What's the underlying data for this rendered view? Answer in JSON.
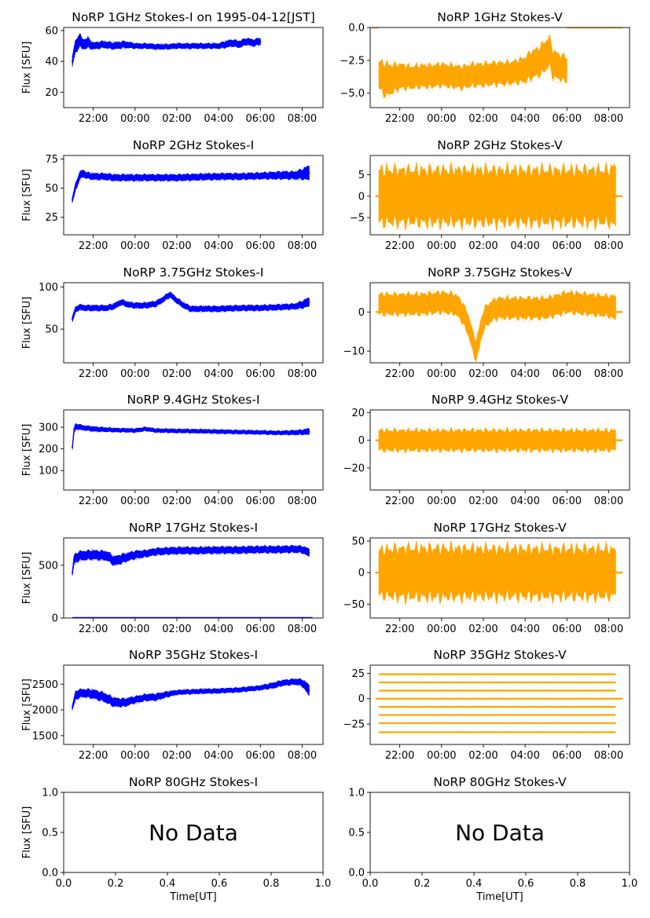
{
  "colors": {
    "stokes_i": "#0000ff",
    "stokes_v": "#ffa500",
    "axes": "#000000",
    "background": "#ffffff"
  },
  "common": {
    "ylabel": "Flux [SFU]",
    "time_ticks": [
      "22:00",
      "00:00",
      "02:00",
      "04:00",
      "06:00",
      "08:00"
    ],
    "no_data_text": "No Data",
    "empty_xlabel": "Time[UT]"
  },
  "chart_data": [
    {
      "type": "scatter",
      "row": 0,
      "col": 0,
      "title": "NoRP 1GHz Stokes-I on 1995-04-12[JST]",
      "ylabel": "Flux [SFU]",
      "ylim": [
        10,
        62
      ],
      "yticks": [
        20,
        40,
        60
      ],
      "ytick_labels": [
        "20",
        "40",
        "60"
      ],
      "x_ticks": [
        "22:00",
        "00:00",
        "02:00",
        "04:00",
        "06:00",
        "08:00"
      ],
      "series_color": "stokes_i",
      "x_range": [
        "20:35",
        "09:00"
      ],
      "data_extent": [
        "21:00",
        "06:00"
      ],
      "edge_marks": [],
      "x": [
        "21:00",
        "21:05",
        "21:10",
        "21:20",
        "21:30",
        "21:45",
        "22:00",
        "22:30",
        "23:00",
        "23:30",
        "00:00",
        "00:30",
        "01:00",
        "01:30",
        "02:00",
        "02:30",
        "03:00",
        "03:30",
        "04:00",
        "04:20",
        "04:40",
        "05:00",
        "05:20",
        "05:40",
        "06:00"
      ],
      "y": [
        40,
        46,
        50,
        54,
        51,
        52,
        50,
        51,
        50,
        51,
        50,
        50,
        49.5,
        49.5,
        50,
        50,
        50,
        50,
        50,
        51,
        52,
        51,
        53,
        52,
        53
      ],
      "band": [
        3,
        3,
        4,
        4,
        3,
        3,
        2,
        2,
        2,
        2,
        1.5,
        1.5,
        1.5,
        1.5,
        1.5,
        1.5,
        1.5,
        1.5,
        1.5,
        2,
        2,
        2,
        2,
        2,
        2
      ]
    },
    {
      "type": "scatter",
      "row": 0,
      "col": 1,
      "title": "NoRP 1GHz Stokes-V",
      "ylim": [
        -6.1,
        0
      ],
      "yticks": [
        -5.0,
        -2.5,
        0.0
      ],
      "ytick_labels": [
        "−5.0",
        "−2.5",
        "0.0"
      ],
      "x_ticks": [
        "22:00",
        "00:00",
        "02:00",
        "04:00",
        "06:00",
        "08:00"
      ],
      "series_color": "stokes_v",
      "x_range": [
        "20:35",
        "09:00"
      ],
      "data_extent": [
        "21:00",
        "06:00"
      ],
      "edge_marks": [
        [
          "20:40",
          "21:00",
          0
        ],
        [
          "06:00",
          "08:40",
          0
        ]
      ],
      "x": [
        "21:00",
        "21:20",
        "21:40",
        "22:00",
        "22:30",
        "23:00",
        "23:30",
        "00:00",
        "00:30",
        "01:00",
        "01:30",
        "02:00",
        "02:30",
        "03:00",
        "03:30",
        "04:00",
        "04:20",
        "04:40",
        "05:00",
        "05:10",
        "05:20",
        "05:40",
        "06:00"
      ],
      "y": [
        -3.6,
        -4.0,
        -3.9,
        -3.7,
        -3.8,
        -3.7,
        -3.7,
        -3.6,
        -3.7,
        -3.8,
        -3.6,
        -3.6,
        -3.5,
        -3.5,
        -3.4,
        -3.2,
        -2.8,
        -2.6,
        -2.1,
        -1.8,
        -2.8,
        -3.0,
        -3.2
      ],
      "band": [
        1.0,
        1.2,
        1.0,
        0.9,
        0.8,
        0.8,
        0.8,
        0.8,
        0.8,
        0.8,
        0.8,
        0.8,
        0.8,
        0.8,
        0.8,
        0.9,
        1.0,
        1.0,
        1.1,
        1.0,
        1.0,
        0.9,
        0.9
      ]
    },
    {
      "type": "scatter",
      "row": 1,
      "col": 0,
      "title": "NoRP 2GHz Stokes-I",
      "ylabel": "Flux [SFU]",
      "ylim": [
        10,
        78
      ],
      "yticks": [
        25,
        50,
        75
      ],
      "ytick_labels": [
        "25",
        "50",
        "75"
      ],
      "x_ticks": [
        "22:00",
        "00:00",
        "02:00",
        "04:00",
        "06:00",
        "08:00"
      ],
      "series_color": "stokes_i",
      "x_range": [
        "20:35",
        "09:00"
      ],
      "data_extent": [
        "21:00",
        "08:20"
      ],
      "edge_marks": [],
      "x": [
        "21:00",
        "21:10",
        "21:20",
        "21:30",
        "21:40",
        "22:00",
        "22:30",
        "23:00",
        "00:00",
        "01:00",
        "02:00",
        "03:00",
        "04:00",
        "05:00",
        "06:00",
        "07:00",
        "07:40",
        "08:00",
        "08:20"
      ],
      "y": [
        40,
        52,
        60,
        63,
        61,
        60,
        60,
        59,
        59,
        59,
        59,
        59.5,
        60,
        60,
        60.5,
        61,
        61,
        62,
        63
      ],
      "band": [
        2,
        3,
        3,
        3,
        2.5,
        2.5,
        2.5,
        2.5,
        2.5,
        2.5,
        2.5,
        2.5,
        2.5,
        2.5,
        2.5,
        3,
        3,
        4,
        6
      ]
    },
    {
      "type": "scatter",
      "row": 1,
      "col": 1,
      "title": "NoRP 2GHz Stokes-V",
      "ylim": [
        -9,
        9.5
      ],
      "yticks": [
        -5,
        0,
        5
      ],
      "ytick_labels": [
        "−5",
        "0",
        "5"
      ],
      "x_ticks": [
        "22:00",
        "00:00",
        "02:00",
        "04:00",
        "06:00",
        "08:00"
      ],
      "series_color": "stokes_v",
      "x_range": [
        "20:35",
        "09:00"
      ],
      "data_extent": [
        "21:00",
        "08:20"
      ],
      "edge_marks": [
        [
          "20:50",
          "21:00",
          0
        ],
        [
          "08:20",
          "08:40",
          0
        ]
      ],
      "x": [
        "21:00",
        "22:00",
        "00:00",
        "02:00",
        "04:00",
        "06:00",
        "08:00",
        "08:20"
      ],
      "y": [
        0,
        0,
        0,
        0,
        0,
        0,
        0,
        0
      ],
      "band": [
        6,
        6,
        6,
        6,
        6,
        6,
        6,
        7
      ]
    },
    {
      "type": "scatter",
      "row": 2,
      "col": 0,
      "title": "NoRP 3.75GHz Stokes-I",
      "ylabel": "Flux [SFU]",
      "ylim": [
        10,
        105
      ],
      "yticks": [
        50,
        100
      ],
      "ytick_labels": [
        "50",
        "100"
      ],
      "x_ticks": [
        "22:00",
        "00:00",
        "02:00",
        "04:00",
        "06:00",
        "08:00"
      ],
      "series_color": "stokes_i",
      "x_range": [
        "20:35",
        "09:00"
      ],
      "data_extent": [
        "21:00",
        "08:20"
      ],
      "edge_marks": [],
      "x": [
        "21:00",
        "21:10",
        "21:20",
        "21:40",
        "22:00",
        "22:40",
        "23:00",
        "23:20",
        "23:40",
        "00:00",
        "00:30",
        "01:00",
        "01:20",
        "01:40",
        "02:00",
        "02:20",
        "02:40",
        "03:00",
        "04:00",
        "05:00",
        "06:00",
        "07:00",
        "07:40",
        "08:00",
        "08:20"
      ],
      "y": [
        62,
        74,
        76,
        75,
        75,
        75,
        77,
        82,
        79,
        78,
        78,
        80,
        85,
        91,
        84,
        78,
        74,
        74,
        74,
        75,
        75,
        76,
        77,
        79,
        82
      ],
      "band": [
        3,
        3,
        3,
        3,
        3,
        3,
        3,
        3,
        3,
        3,
        3,
        3,
        3,
        3,
        3,
        3,
        3,
        3,
        3,
        3,
        3,
        3,
        3,
        4,
        5
      ]
    },
    {
      "type": "scatter",
      "row": 2,
      "col": 1,
      "title": "NoRP 3.75GHz Stokes-V",
      "ylim": [
        -13,
        7.5
      ],
      "yticks": [
        -10,
        0
      ],
      "ytick_labels": [
        "−10",
        "0"
      ],
      "x_ticks": [
        "22:00",
        "00:00",
        "02:00",
        "04:00",
        "06:00",
        "08:00"
      ],
      "series_color": "stokes_v",
      "x_range": [
        "20:35",
        "09:00"
      ],
      "data_extent": [
        "21:00",
        "08:20"
      ],
      "edge_marks": [
        [
          "20:50",
          "21:00",
          0
        ],
        [
          "08:20",
          "08:40",
          0
        ]
      ],
      "x": [
        "21:00",
        "22:00",
        "23:00",
        "00:00",
        "00:40",
        "01:00",
        "01:20",
        "01:30",
        "01:40",
        "01:50",
        "02:00",
        "02:20",
        "02:40",
        "03:00",
        "04:00",
        "05:00",
        "06:00",
        "07:00",
        "08:00",
        "08:20"
      ],
      "y": [
        2,
        2,
        2,
        2.5,
        2,
        0,
        -4,
        -8,
        -10,
        -6,
        -2,
        0,
        1,
        1,
        1,
        1,
        2.5,
        2,
        1.5,
        1
      ],
      "band": [
        2.5,
        2.5,
        2.5,
        2.5,
        2.5,
        2.5,
        2.5,
        2.5,
        2.5,
        2.5,
        2.5,
        2.5,
        2.5,
        2.5,
        2.5,
        2.5,
        2.5,
        2.5,
        2.5,
        3
      ]
    },
    {
      "type": "scatter",
      "row": 3,
      "col": 0,
      "title": "NoRP 9.4GHz Stokes-I",
      "ylabel": "Flux [SFU]",
      "ylim": [
        10,
        380
      ],
      "yticks": [
        100,
        200,
        300
      ],
      "ytick_labels": [
        "100",
        "200",
        "300"
      ],
      "x_ticks": [
        "22:00",
        "00:00",
        "02:00",
        "04:00",
        "06:00",
        "08:00"
      ],
      "series_color": "stokes_i",
      "x_range": [
        "20:35",
        "09:00"
      ],
      "data_extent": [
        "21:00",
        "08:20"
      ],
      "edge_marks": [],
      "x": [
        "21:00",
        "21:05",
        "21:10",
        "21:30",
        "22:00",
        "23:00",
        "00:00",
        "00:30",
        "01:00",
        "02:00",
        "03:00",
        "04:00",
        "05:00",
        "06:00",
        "07:00",
        "08:00",
        "08:20"
      ],
      "y": [
        210,
        290,
        305,
        298,
        292,
        287,
        285,
        292,
        285,
        283,
        282,
        280,
        278,
        276,
        274,
        277,
        280
      ],
      "band": [
        10,
        12,
        12,
        10,
        10,
        8,
        8,
        8,
        8,
        8,
        8,
        8,
        8,
        8,
        8,
        10,
        14
      ]
    },
    {
      "type": "scatter",
      "row": 3,
      "col": 1,
      "title": "NoRP 9.4GHz Stokes-V",
      "ylim": [
        -36,
        22
      ],
      "yticks": [
        -20,
        0,
        20
      ],
      "ytick_labels": [
        "−20",
        "0",
        "20"
      ],
      "x_ticks": [
        "22:00",
        "00:00",
        "02:00",
        "04:00",
        "06:00",
        "08:00"
      ],
      "series_color": "stokes_v",
      "x_range": [
        "20:35",
        "09:00"
      ],
      "data_extent": [
        "21:00",
        "08:20"
      ],
      "edge_marks": [
        [
          "20:50",
          "21:00",
          0
        ],
        [
          "08:20",
          "08:40",
          0
        ]
      ],
      "x": [
        "21:00",
        "22:00",
        "00:00",
        "02:00",
        "04:00",
        "06:00",
        "08:00",
        "08:20"
      ],
      "y": [
        0,
        0,
        0,
        0,
        0,
        0,
        0,
        0
      ],
      "band": [
        7,
        7,
        7,
        7,
        7,
        7,
        7,
        7
      ]
    },
    {
      "type": "scatter",
      "row": 4,
      "col": 0,
      "title": "NoRP 17GHz Stokes-I",
      "ylabel": "Flux [SFU]",
      "ylim": [
        0,
        760
      ],
      "yticks": [
        0,
        500
      ],
      "ytick_labels": [
        "0",
        "500"
      ],
      "x_ticks": [
        "22:00",
        "00:00",
        "02:00",
        "04:00",
        "06:00",
        "08:00"
      ],
      "series_color": "stokes_i",
      "x_range": [
        "20:35",
        "09:00"
      ],
      "data_extent": [
        "21:00",
        "08:20"
      ],
      "edge_marks": [
        [
          "21:00",
          "08:30",
          0
        ]
      ],
      "x": [
        "21:00",
        "21:05",
        "21:20",
        "22:00",
        "22:40",
        "23:00",
        "23:20",
        "23:40",
        "00:00",
        "00:30",
        "01:00",
        "02:00",
        "03:00",
        "04:00",
        "05:00",
        "06:00",
        "07:00",
        "07:40",
        "08:00",
        "08:20"
      ],
      "y": [
        430,
        560,
        590,
        600,
        590,
        540,
        560,
        580,
        600,
        610,
        630,
        640,
        640,
        645,
        645,
        650,
        650,
        655,
        650,
        620
      ],
      "band": [
        20,
        40,
        40,
        40,
        40,
        40,
        40,
        35,
        35,
        30,
        30,
        30,
        30,
        30,
        30,
        30,
        30,
        30,
        30,
        35
      ]
    },
    {
      "type": "scatter",
      "row": 4,
      "col": 1,
      "title": "NoRP 17GHz Stokes-V",
      "ylim": [
        -72,
        55
      ],
      "yticks": [
        -50,
        0,
        50
      ],
      "ytick_labels": [
        "−50",
        "0",
        "50"
      ],
      "x_ticks": [
        "22:00",
        "00:00",
        "02:00",
        "04:00",
        "06:00",
        "08:00"
      ],
      "series_color": "stokes_v",
      "x_range": [
        "20:35",
        "09:00"
      ],
      "data_extent": [
        "21:00",
        "08:20"
      ],
      "edge_marks": [
        [
          "20:50",
          "21:00",
          0
        ],
        [
          "08:20",
          "08:40",
          0
        ]
      ],
      "x": [
        "21:00",
        "22:00",
        "00:00",
        "02:00",
        "04:00",
        "06:00",
        "08:00",
        "08:20"
      ],
      "y": [
        0,
        0,
        0,
        0,
        0,
        0,
        0,
        0
      ],
      "band": [
        35,
        38,
        38,
        37,
        37,
        37,
        37,
        35
      ]
    },
    {
      "type": "scatter",
      "row": 5,
      "col": 0,
      "title": "NoRP 35GHz Stokes-I",
      "ylabel": "Flux [SFU]",
      "ylim": [
        1330,
        2870
      ],
      "yticks": [
        1500,
        2000,
        2500
      ],
      "ytick_labels": [
        "1500",
        "2000",
        "2500"
      ],
      "x_ticks": [
        "22:00",
        "00:00",
        "02:00",
        "04:00",
        "06:00",
        "08:00"
      ],
      "series_color": "stokes_i",
      "x_range": [
        "20:35",
        "09:00"
      ],
      "data_extent": [
        "21:00",
        "08:20"
      ],
      "edge_marks": [],
      "x": [
        "21:00",
        "21:10",
        "21:30",
        "22:00",
        "22:30",
        "23:00",
        "23:30",
        "00:00",
        "00:30",
        "01:00",
        "01:30",
        "02:00",
        "03:00",
        "04:00",
        "05:00",
        "06:00",
        "06:40",
        "07:00",
        "07:40",
        "08:00",
        "08:20"
      ],
      "y": [
        2050,
        2300,
        2330,
        2310,
        2250,
        2150,
        2140,
        2200,
        2240,
        2250,
        2300,
        2340,
        2360,
        2370,
        2390,
        2430,
        2480,
        2520,
        2550,
        2530,
        2380
      ],
      "band": [
        40,
        80,
        70,
        80,
        80,
        80,
        70,
        60,
        60,
        60,
        50,
        40,
        40,
        40,
        40,
        40,
        50,
        50,
        50,
        60,
        100
      ]
    },
    {
      "type": "scatter",
      "row": 5,
      "col": 1,
      "title": "NoRP 35GHz Stokes-V",
      "ylim": [
        -45,
        33
      ],
      "yticks": [
        -25,
        0,
        25
      ],
      "ytick_labels": [
        "−25",
        "0",
        "25"
      ],
      "x_ticks": [
        "22:00",
        "00:00",
        "02:00",
        "04:00",
        "06:00",
        "08:00"
      ],
      "series_color": "stokes_v",
      "x_range": [
        "20:35",
        "09:00"
      ],
      "data_extent": [
        "21:00",
        "08:20"
      ],
      "edge_marks": [
        [
          "20:50",
          "21:00",
          0
        ],
        [
          "08:20",
          "08:40",
          0
        ]
      ],
      "levels": [
        24,
        16,
        8,
        0,
        -8,
        -16,
        -24,
        -33
      ],
      "x": [
        "21:00",
        "08:20"
      ],
      "y": [
        0,
        0
      ],
      "band": [
        0,
        0
      ]
    },
    {
      "type": "scatter",
      "row": 6,
      "col": 0,
      "title": "NoRP 80GHz Stokes-I",
      "ylabel": "Flux [SFU]",
      "xlabel": "Time[UT]",
      "no_data": true,
      "xlim": [
        0,
        1
      ],
      "ylim": [
        0,
        1
      ],
      "xticks": [
        0.0,
        0.2,
        0.4,
        0.6,
        0.8,
        1.0
      ],
      "xtick_labels": [
        "0.0",
        "0.2",
        "0.4",
        "0.6",
        "0.8",
        "1.0"
      ],
      "yticks": [
        0.0,
        0.5,
        1.0
      ],
      "ytick_labels": [
        "0.0",
        "0.5",
        "1.0"
      ],
      "annotation": "No Data"
    },
    {
      "type": "scatter",
      "row": 6,
      "col": 1,
      "title": "NoRP 80GHz Stokes-V",
      "xlabel": "Time[UT]",
      "no_data": true,
      "xlim": [
        0,
        1
      ],
      "ylim": [
        0,
        1
      ],
      "xticks": [
        0.0,
        0.2,
        0.4,
        0.6,
        0.8,
        1.0
      ],
      "xtick_labels": [
        "0.0",
        "0.2",
        "0.4",
        "0.6",
        "0.8",
        "1.0"
      ],
      "yticks": [
        0.0,
        0.5,
        1.0
      ],
      "ytick_labels": [
        "0.0",
        "0.5",
        "1.0"
      ],
      "annotation": "No Data"
    }
  ]
}
